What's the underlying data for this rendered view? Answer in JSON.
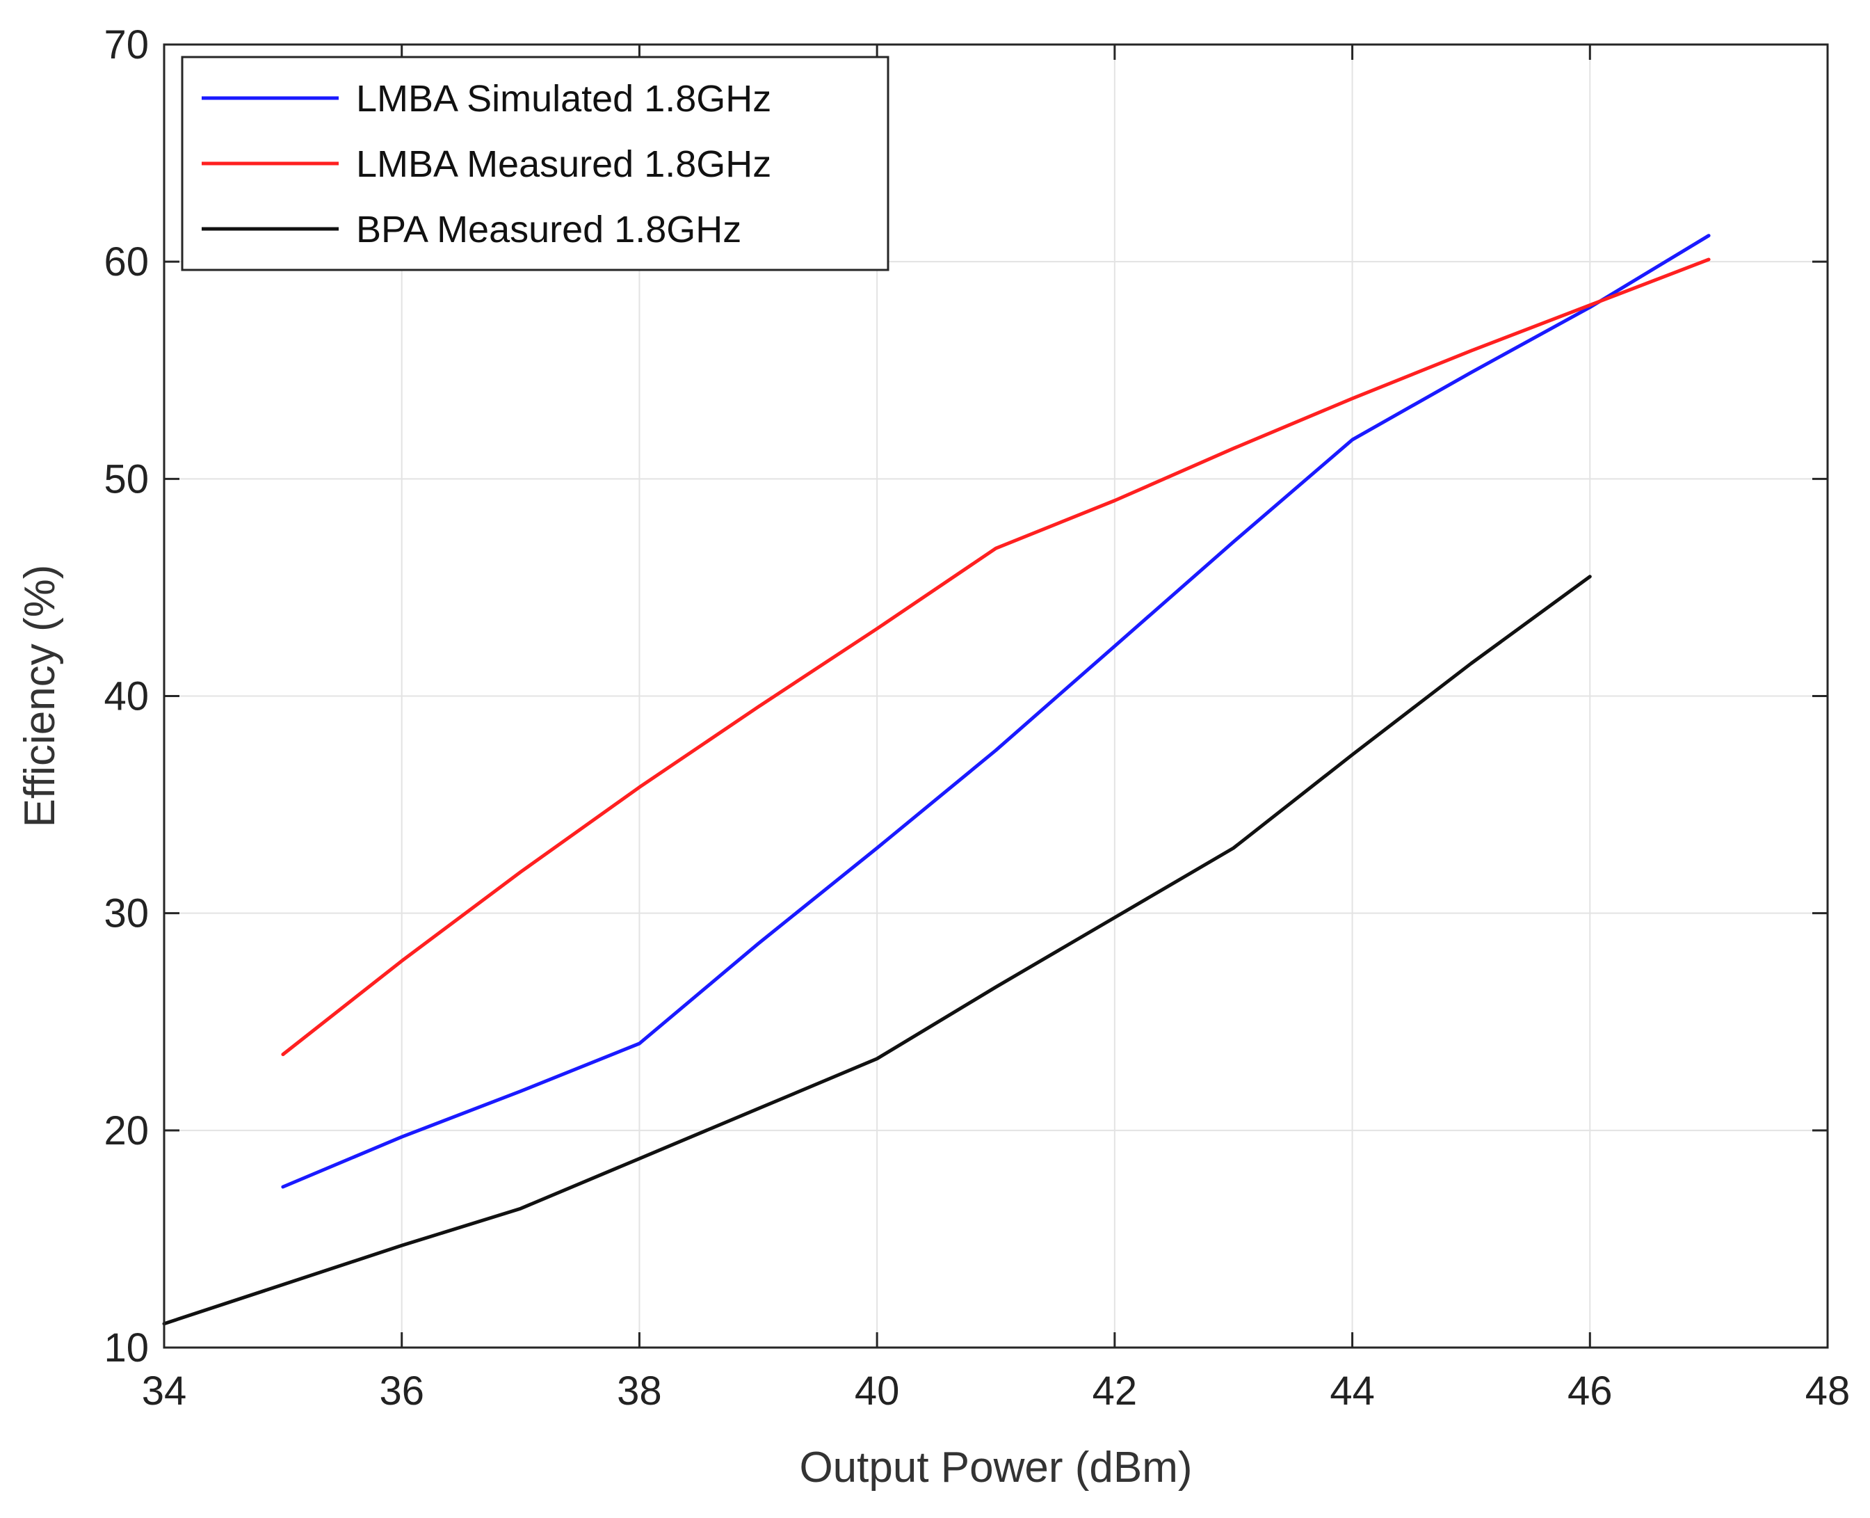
{
  "chart_data": {
    "type": "line",
    "title": "",
    "xlabel": "Output Power (dBm)",
    "ylabel": "Efficiency (%)",
    "xlim": [
      34,
      48
    ],
    "ylim": [
      10,
      70
    ],
    "xticks": [
      "34",
      "36",
      "38",
      "40",
      "42",
      "44",
      "46",
      "48"
    ],
    "yticks": [
      "10",
      "20",
      "30",
      "40",
      "50",
      "60",
      "70"
    ],
    "grid": true,
    "legend_position": "top-left",
    "series": [
      {
        "name": "LMBA Simulated 1.8GHz",
        "color": "#1a1aff",
        "x": [
          35,
          36,
          37,
          38,
          39,
          40,
          41,
          42,
          43,
          44,
          45,
          46,
          47
        ],
        "y": [
          17.4,
          19.7,
          21.8,
          24.0,
          28.6,
          33.0,
          37.5,
          42.3,
          47.1,
          51.8,
          54.9,
          57.9,
          61.2
        ]
      },
      {
        "name": "LMBA Measured 1.8GHz",
        "color": "#ff2020",
        "x": [
          35,
          36,
          37,
          38,
          39,
          40,
          41,
          42,
          43,
          44,
          45,
          46,
          47
        ],
        "y": [
          23.5,
          27.8,
          31.9,
          35.8,
          39.5,
          43.1,
          46.8,
          49.0,
          51.4,
          53.7,
          55.9,
          58.0,
          60.1
        ]
      },
      {
        "name": "BPA Measured 1.8GHz",
        "color": "#111111",
        "x": [
          34,
          35,
          36,
          37,
          38,
          39,
          40,
          41,
          42,
          43,
          44,
          45,
          46
        ],
        "y": [
          11.1,
          12.9,
          14.7,
          16.4,
          18.7,
          21.0,
          23.3,
          26.6,
          29.8,
          33.0,
          37.3,
          41.5,
          45.5
        ]
      }
    ]
  }
}
